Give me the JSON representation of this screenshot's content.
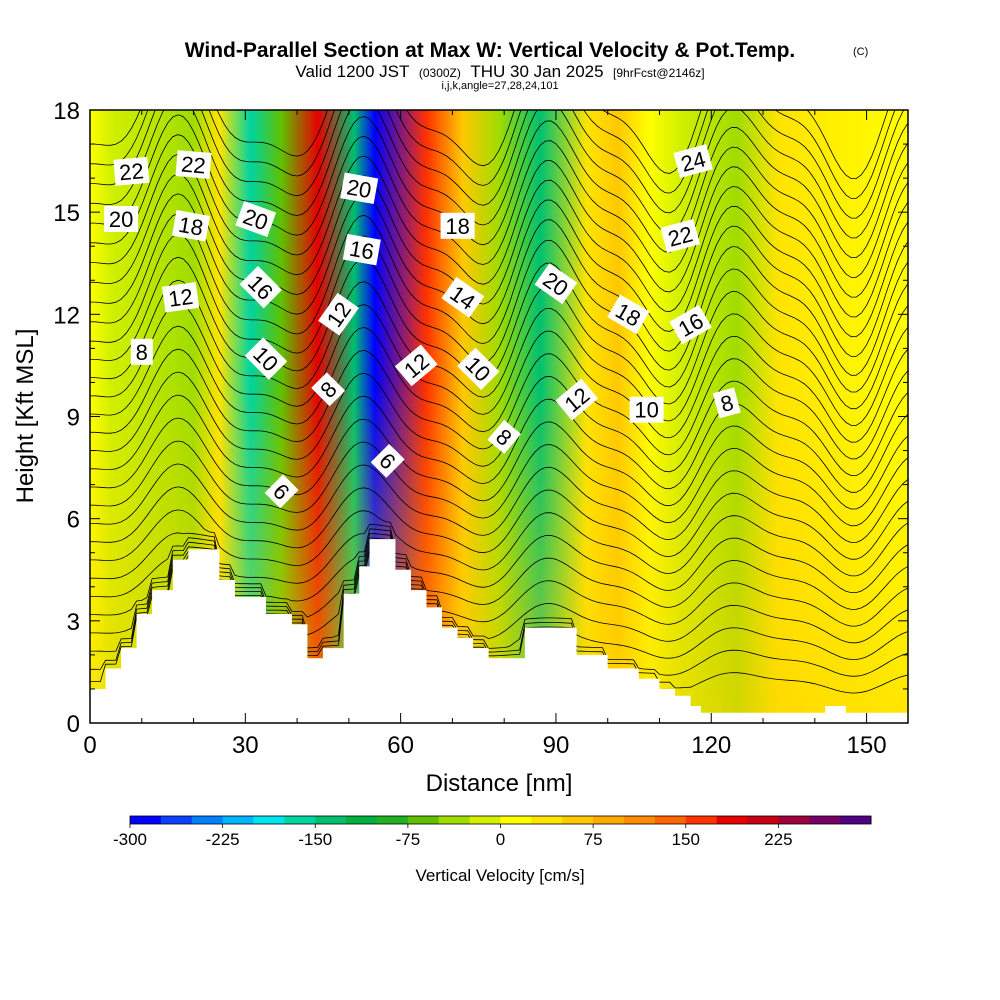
{
  "chart_data": {
    "type": "heatmap",
    "title": "Wind-Parallel Section at Max W: Vertical Velocity & Pot.Temp.",
    "title_mark": "(C)",
    "subtitle_main_a": "Valid 1200 JST",
    "subtitle_small_a": "(0300Z)",
    "subtitle_main_b": "THU 30 Jan 2025",
    "subtitle_small_b": "[9hrFcst@2146z]",
    "subtitle_line2": "i,j,k,angle=27,28,24,101",
    "xlabel": "Distance [nm]",
    "ylabel": "Height [Kft MSL]",
    "xlim": [
      0,
      158
    ],
    "ylim": [
      0,
      18
    ],
    "xticks": [
      0,
      30,
      60,
      90,
      120,
      150
    ],
    "yticks": [
      0,
      3,
      6,
      9,
      12,
      15,
      18
    ],
    "colorbar": {
      "label": "Vertical Velocity [cm/s]",
      "min": -300,
      "max": 275,
      "step": 25,
      "tick_values": [
        -300,
        -225,
        -150,
        -75,
        0,
        75,
        150,
        225
      ],
      "colors": [
        "#0000ff",
        "#0a40ff",
        "#0080ff",
        "#00b4ff",
        "#00e6f0",
        "#00d4a0",
        "#00c070",
        "#00b040",
        "#20b020",
        "#60c000",
        "#a0dc00",
        "#d2f000",
        "#ffff00",
        "#ffe400",
        "#ffc800",
        "#ffaa00",
        "#ff8c00",
        "#ff6400",
        "#ff3200",
        "#e60000",
        "#c80014",
        "#a0003c",
        "#780064",
        "#500082"
      ]
    },
    "wave_bands": [
      {
        "x": 4,
        "w": -10
      },
      {
        "x": 20,
        "w": -40
      },
      {
        "x": 25,
        "w": 25
      },
      {
        "x": 31,
        "w": -170
      },
      {
        "x": 37,
        "w": -60
      },
      {
        "x": 44,
        "w": 190
      },
      {
        "x": 51,
        "w": -140
      },
      {
        "x": 55,
        "w": -290
      },
      {
        "x": 65,
        "w": 160
      },
      {
        "x": 72,
        "w": 60
      },
      {
        "x": 79,
        "w": -40
      },
      {
        "x": 87,
        "w": -140
      },
      {
        "x": 96,
        "w": 40
      },
      {
        "x": 102,
        "w": 60
      },
      {
        "x": 108,
        "w": 20
      },
      {
        "x": 114,
        "w": -10
      },
      {
        "x": 125,
        "w": -50
      },
      {
        "x": 133,
        "w": 30
      }
    ],
    "terrain": [
      [
        0,
        1.0
      ],
      [
        3,
        1.6
      ],
      [
        6,
        2.2
      ],
      [
        9,
        3.2
      ],
      [
        12,
        3.9
      ],
      [
        16,
        4.8
      ],
      [
        19,
        5.1
      ],
      [
        25,
        4.2
      ],
      [
        28,
        3.7
      ],
      [
        34,
        3.2
      ],
      [
        39,
        2.9
      ],
      [
        42,
        1.9
      ],
      [
        45,
        2.2
      ],
      [
        49,
        3.8
      ],
      [
        52,
        4.6
      ],
      [
        54,
        5.4
      ],
      [
        59,
        4.5
      ],
      [
        62,
        3.9
      ],
      [
        65,
        3.4
      ],
      [
        68,
        2.8
      ],
      [
        71,
        2.5
      ],
      [
        74,
        2.2
      ],
      [
        77,
        1.9
      ],
      [
        84,
        2.8
      ],
      [
        94,
        2.0
      ],
      [
        100,
        1.6
      ],
      [
        106,
        1.3
      ],
      [
        110,
        1.0
      ],
      [
        113,
        0.8
      ],
      [
        116,
        0.5
      ],
      [
        118,
        0.3
      ],
      [
        134,
        0.3
      ],
      [
        142,
        0.5
      ],
      [
        146,
        0.3
      ],
      [
        158,
        0.3
      ]
    ],
    "theta_levels": [
      6,
      8,
      10,
      12,
      14,
      16,
      18,
      20,
      22,
      24
    ],
    "contour_labels": [
      {
        "text": "22",
        "x": 8,
        "y": 16.2,
        "rot": -5
      },
      {
        "text": "22",
        "x": 20,
        "y": 16.4,
        "rot": 5
      },
      {
        "text": "20",
        "x": 6,
        "y": 14.8,
        "rot": 0
      },
      {
        "text": "18",
        "x": 19.5,
        "y": 14.6,
        "rot": 10
      },
      {
        "text": "20",
        "x": 32,
        "y": 14.8,
        "rot": 20
      },
      {
        "text": "20",
        "x": 52,
        "y": 15.7,
        "rot": 10
      },
      {
        "text": "16",
        "x": 52.5,
        "y": 13.9,
        "rot": 10
      },
      {
        "text": "18",
        "x": 71,
        "y": 14.6,
        "rot": 0
      },
      {
        "text": "24",
        "x": 116.5,
        "y": 16.5,
        "rot": -15
      },
      {
        "text": "22",
        "x": 114,
        "y": 14.3,
        "rot": -15
      },
      {
        "text": "16",
        "x": 33,
        "y": 12.8,
        "rot": 45
      },
      {
        "text": "12",
        "x": 17.5,
        "y": 12.5,
        "rot": -8
      },
      {
        "text": "12",
        "x": 48,
        "y": 12.0,
        "rot": -55
      },
      {
        "text": "14",
        "x": 72,
        "y": 12.5,
        "rot": 35
      },
      {
        "text": "20",
        "x": 90,
        "y": 12.9,
        "rot": 35
      },
      {
        "text": "18",
        "x": 104,
        "y": 12.0,
        "rot": 30
      },
      {
        "text": "16",
        "x": 116,
        "y": 11.7,
        "rot": -30
      },
      {
        "text": "8",
        "x": 10,
        "y": 10.9,
        "rot": 0
      },
      {
        "text": "10",
        "x": 34,
        "y": 10.7,
        "rot": 45
      },
      {
        "text": "12",
        "x": 63,
        "y": 10.5,
        "rot": -40
      },
      {
        "text": "10",
        "x": 75,
        "y": 10.4,
        "rot": 45
      },
      {
        "text": "8",
        "x": 46,
        "y": 9.8,
        "rot": -45
      },
      {
        "text": "12",
        "x": 94,
        "y": 9.5,
        "rot": -40
      },
      {
        "text": "10",
        "x": 107.5,
        "y": 9.2,
        "rot": 0
      },
      {
        "text": "8",
        "x": 123,
        "y": 9.4,
        "rot": -15
      },
      {
        "text": "8",
        "x": 80,
        "y": 8.4,
        "rot": 40
      },
      {
        "text": "6",
        "x": 57.5,
        "y": 7.7,
        "rot": 45
      },
      {
        "text": "6",
        "x": 37,
        "y": 6.8,
        "rot": 45
      }
    ]
  }
}
